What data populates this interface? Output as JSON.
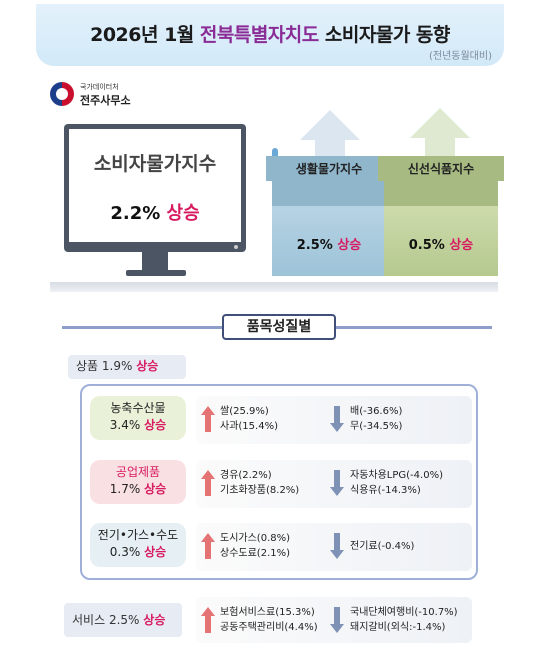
{
  "title": {
    "prefix": "2026년 1월",
    "highlight": "전북특별자치도",
    "suffix": "소비자물가 동향",
    "subtitle": "(전년동월대비)"
  },
  "logo": {
    "small": "국가데이터처",
    "name": "전주사무소"
  },
  "cpi": {
    "label": "소비자물가지수",
    "value": "2.2%",
    "direction": "상승"
  },
  "living": {
    "label": "생활물가지수",
    "value": "2.5%",
    "direction": "상승"
  },
  "fresh": {
    "label": "신선식품지수",
    "value": "0.5%",
    "direction": "상승"
  },
  "section_title": "품목성질별",
  "goods": {
    "label": "상품",
    "value": "1.9%",
    "direction": "상승"
  },
  "categories": [
    {
      "name": "농축수산물",
      "value": "3.4%",
      "direction": "상승",
      "up": [
        "쌀(25.9%)",
        "사과(15.4%)"
      ],
      "down": [
        "배(-36.6%)",
        "무(-34.5%)"
      ]
    },
    {
      "name": "공업제품",
      "value": "1.7%",
      "direction": "상승",
      "up": [
        "경유(2.2%)",
        "기초화장품(8.2%)"
      ],
      "down": [
        "자동차용LPG(-4.0%)",
        "식용유(-14.3%)"
      ]
    },
    {
      "name": "전기•가스•수도",
      "value": "0.3%",
      "direction": "상승",
      "up": [
        "도시가스(0.8%)",
        "상수도료(2.1%)"
      ],
      "down": [
        "전기료(-0.4%)"
      ]
    }
  ],
  "service": {
    "label": "서비스",
    "value": "2.5%",
    "direction": "상승",
    "up": [
      "보험서비스료(15.3%)",
      "공동주택관리비(4.4%)"
    ],
    "down": [
      "국내단체여행비(-10.7%)",
      "돼지갈비(외식:-1.4%)"
    ]
  },
  "colors": {
    "accent": "#8a2c95",
    "up": "#d81b60",
    "up_arrow": "#e57373",
    "down_arrow": "#7e92b5"
  }
}
